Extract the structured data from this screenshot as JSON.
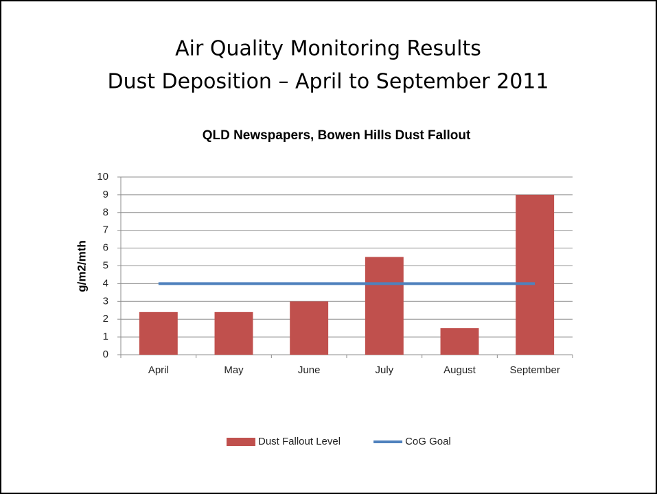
{
  "slide_title": [
    "Air Quality Monitoring Results",
    "Dust Deposition – April to September 2011"
  ],
  "chart_data": {
    "type": "bar",
    "title": "QLD Newspapers, Bowen Hills Dust Fallout",
    "y_label": "g/m2/mth",
    "categories": [
      "April",
      "May",
      "June",
      "July",
      "August",
      "September"
    ],
    "series": [
      {
        "name": "Dust Fallout Level",
        "type": "bar",
        "color": "#c0504d",
        "values": [
          2.4,
          2.4,
          3.0,
          5.5,
          1.5,
          9.0
        ]
      },
      {
        "name": "CoG Goal",
        "type": "line",
        "color": "#4f81bd",
        "values": [
          4,
          4,
          4,
          4,
          4,
          4
        ]
      }
    ],
    "ylim": [
      0,
      10
    ],
    "yticks": [
      0,
      1,
      2,
      3,
      4,
      5,
      6,
      7,
      8,
      9,
      10
    ],
    "grid": true,
    "legend": "bottom"
  }
}
